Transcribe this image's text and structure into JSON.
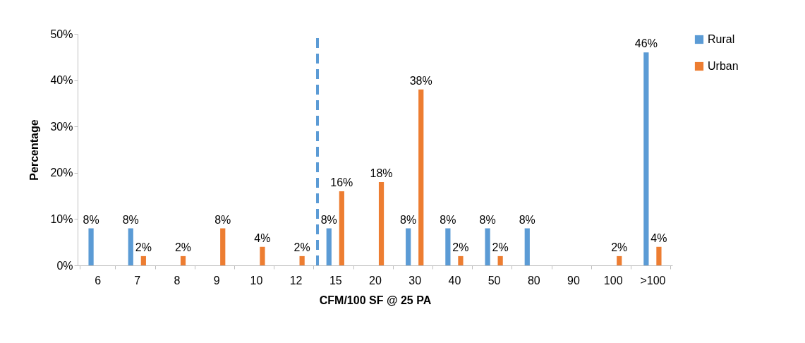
{
  "chart_data": {
    "type": "bar",
    "xlabel": "CFM/100 SF @ 25 PA",
    "ylabel": "Percentage",
    "categories": [
      "6",
      "7",
      "8",
      "9",
      "10",
      "12",
      "15",
      "20",
      "30",
      "40",
      "50",
      "80",
      "90",
      "100",
      ">100"
    ],
    "series": [
      {
        "name": "Rural",
        "color": "#5b9bd5",
        "values": [
          8,
          8,
          null,
          null,
          null,
          null,
          8,
          null,
          8,
          8,
          8,
          8,
          null,
          null,
          46
        ],
        "value_labels": [
          "8%",
          "8%",
          null,
          null,
          null,
          null,
          "8%",
          null,
          "8%",
          "8%",
          "8%",
          "8%",
          null,
          null,
          "46%"
        ]
      },
      {
        "name": "Urban",
        "color": "#ed7d31",
        "values": [
          null,
          2,
          2,
          8,
          4,
          2,
          16,
          18,
          38,
          2,
          2,
          null,
          null,
          2,
          4
        ],
        "value_labels": [
          null,
          "2%",
          "2%",
          "8%",
          "4%",
          "2%",
          "16%",
          "18%",
          "38%",
          "2%",
          "2%",
          null,
          null,
          "2%",
          "4%"
        ]
      }
    ],
    "ylim": [
      0,
      50
    ],
    "yticks": [
      {
        "value": 0,
        "label": "0%"
      },
      {
        "value": 10,
        "label": "10%"
      },
      {
        "value": 20,
        "label": "20%"
      },
      {
        "value": 30,
        "label": "30%"
      },
      {
        "value": 40,
        "label": "40%"
      },
      {
        "value": 50,
        "label": "50%"
      }
    ],
    "ref_lines": [
      {
        "axis": "x",
        "value": "15",
        "color": "#5b9bd5",
        "line_style": "dashed"
      }
    ],
    "grid": false,
    "legend": "right"
  }
}
